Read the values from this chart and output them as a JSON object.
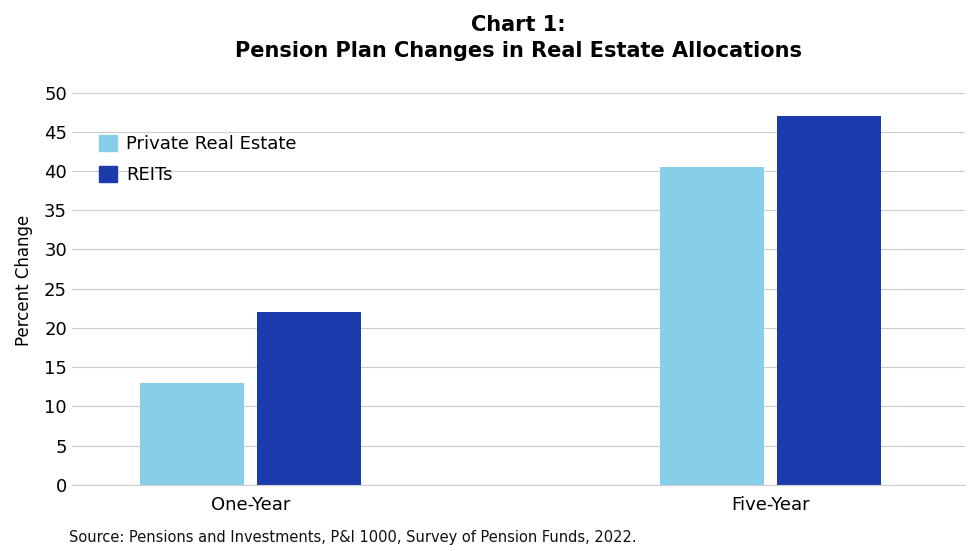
{
  "title_line1": "Chart 1:",
  "title_line2": "Pension Plan Changes in Real Estate Allocations",
  "categories": [
    "One-Year",
    "Five-Year"
  ],
  "series": {
    "Private Real Estate": [
      13,
      40.5
    ],
    "REITs": [
      22,
      47
    ]
  },
  "colors": {
    "Private Real Estate": "#87CEEB",
    "REITs": "#1B3AAB"
  },
  "ylabel": "Percent Change",
  "ylim": [
    0,
    52
  ],
  "yticks": [
    0,
    5,
    10,
    15,
    20,
    25,
    30,
    35,
    40,
    45,
    50
  ],
  "source": "Source: Pensions and Investments, P&I 1000, Survey of Pension Funds, 2022.",
  "background_color": "#ffffff",
  "bar_width": 0.32,
  "title_fontsize": 15,
  "legend_fontsize": 13,
  "tick_fontsize": 13,
  "ylabel_fontsize": 12,
  "source_fontsize": 10.5,
  "group_centers": [
    1.0,
    2.6
  ],
  "xlim": [
    0.45,
    3.2
  ]
}
